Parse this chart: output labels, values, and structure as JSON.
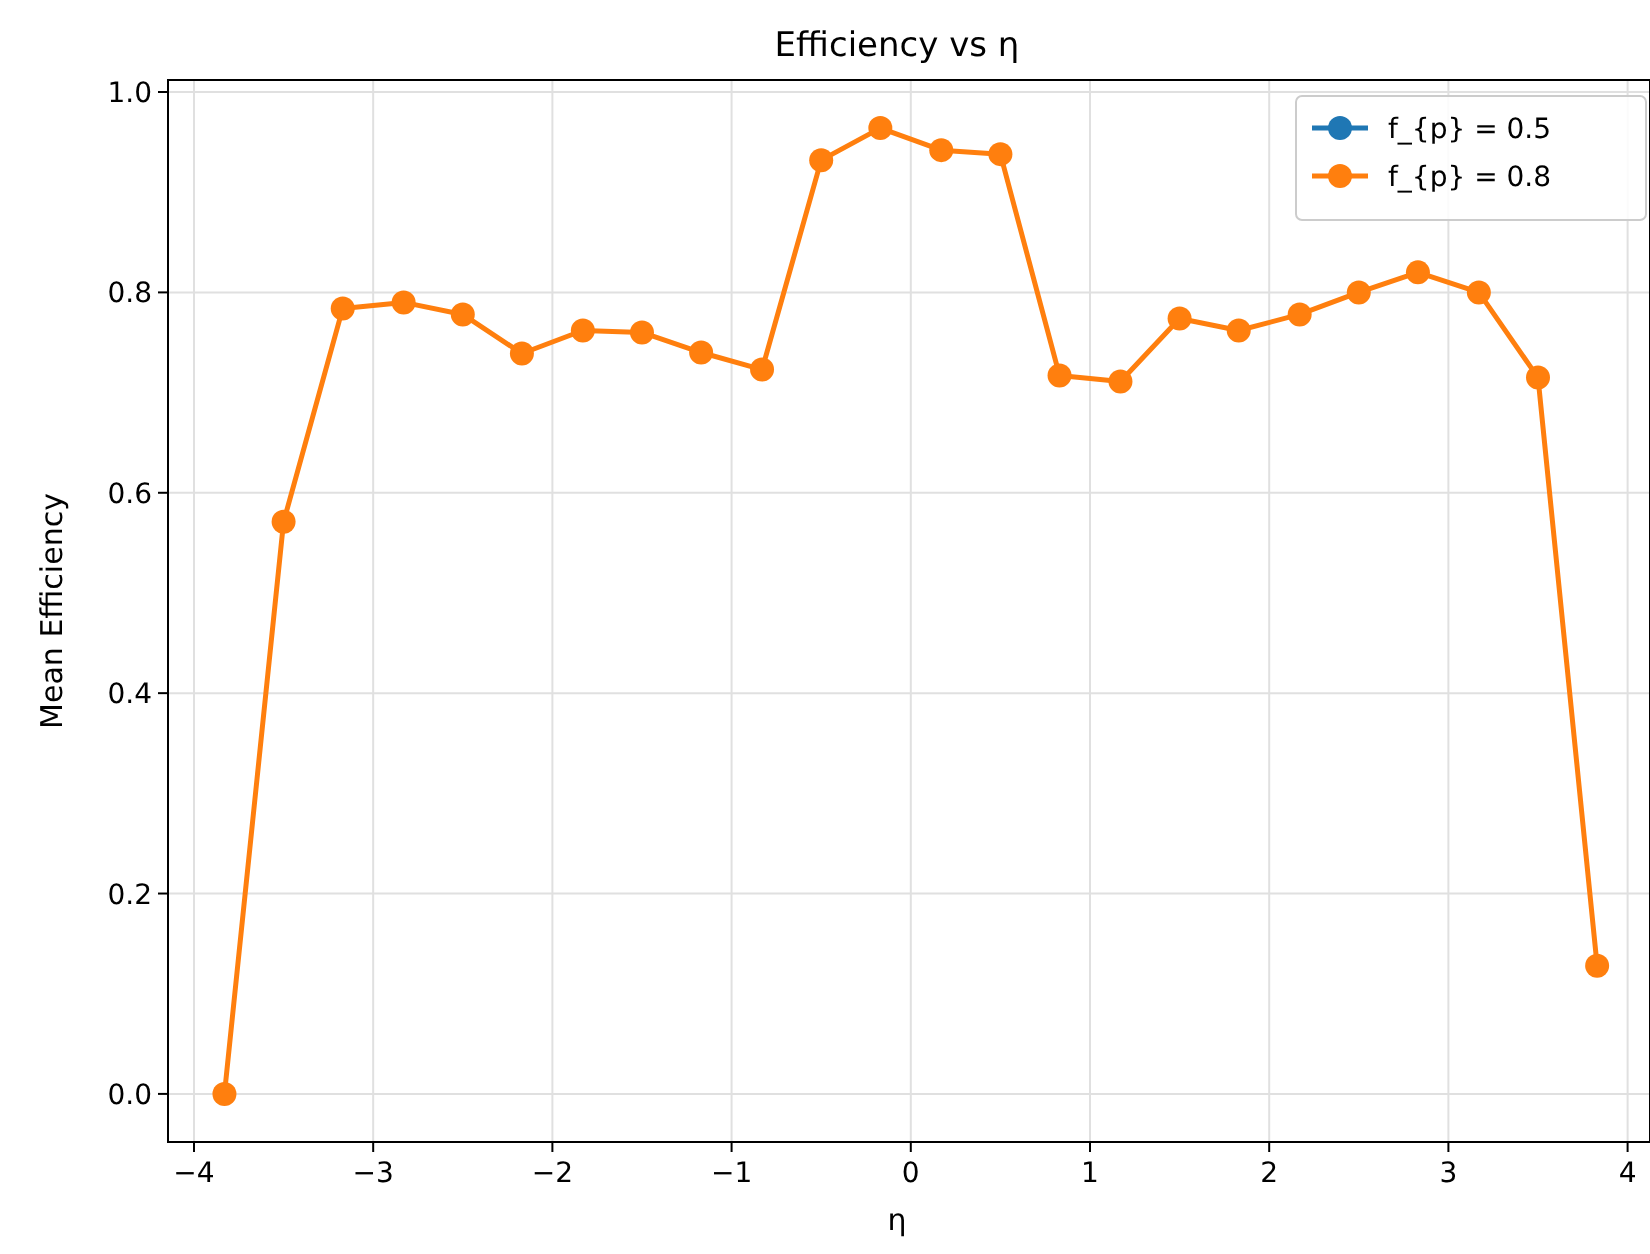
{
  "chart_data": {
    "type": "line",
    "title": "Efficiency vs η",
    "xlabel": "η",
    "ylabel": "Mean Efficiency",
    "x": [
      -3.83,
      -3.5,
      -3.17,
      -2.83,
      -2.5,
      -2.17,
      -1.83,
      -1.5,
      -1.17,
      -0.83,
      -0.5,
      -0.17,
      0.17,
      0.5,
      0.83,
      1.17,
      1.5,
      1.83,
      2.17,
      2.5,
      2.83,
      3.17,
      3.5,
      3.83
    ],
    "series": [
      {
        "name": "f_{p} = 0.5",
        "color": "#1f77b4",
        "values": [
          null,
          null,
          null,
          null,
          null,
          null,
          null,
          null,
          null,
          null,
          null,
          null,
          null,
          null,
          null,
          null,
          null,
          null,
          null,
          null,
          null,
          null,
          null,
          null
        ]
      },
      {
        "name": "f_{p} = 0.8",
        "color": "#ff7f0e",
        "values": [
          0.0,
          0.571,
          0.784,
          0.79,
          0.778,
          0.739,
          0.762,
          0.76,
          0.74,
          0.723,
          0.932,
          0.964,
          0.942,
          0.938,
          0.717,
          0.711,
          0.774,
          0.762,
          0.778,
          0.8,
          0.82,
          0.8,
          0.715,
          0.128
        ]
      }
    ],
    "xlim": [
      -4.145,
      4.125
    ],
    "ylim": [
      -0.048,
      1.012
    ],
    "xticks": [
      {
        "value": -4,
        "label": "−4"
      },
      {
        "value": -3,
        "label": "−3"
      },
      {
        "value": -2,
        "label": "−2"
      },
      {
        "value": -1,
        "label": "−1"
      },
      0,
      1,
      2,
      3,
      4
    ],
    "yticks": [
      {
        "value": 0,
        "label": "0.0"
      },
      0.2,
      0.4,
      0.6,
      0.8,
      {
        "value": 1,
        "label": "1.0"
      }
    ],
    "grid": true,
    "legend": "top right",
    "marker": "circle",
    "line_style": "solid"
  }
}
